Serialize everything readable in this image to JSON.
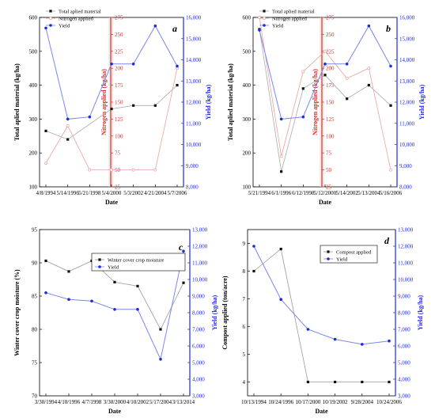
{
  "colors": {
    "black": "#1a1a1a",
    "red": "#c8342c",
    "pink": "#e8a39f",
    "blue": "#1f2bd6",
    "lightblue": "#7b88e8"
  },
  "chart_data": [
    {
      "id": "a",
      "type": "line",
      "panel_label": "a",
      "categories": [
        "4/8/1994",
        "5/14/1996",
        "5/21/1998",
        "5/4/2000",
        "5/3/2002",
        "4/21/2004",
        "5/7/2006"
      ],
      "xlabel": "Date",
      "ylabel_left": "Total aplied material (kg/ha)",
      "ylabel_mid": "Nitrogen applied (kg/ha)",
      "ylabel_right": "Yield (kg/ha)",
      "ylim_left": [
        100,
        600
      ],
      "yticks_left": [
        "100",
        "200",
        "300",
        "400",
        "500",
        "600"
      ],
      "ylim_mid": [
        25,
        275
      ],
      "yticks_mid": [
        "25",
        "50",
        "75",
        "100",
        "125",
        "150",
        "175",
        "200",
        "225",
        "250",
        "275"
      ],
      "ylim_right": [
        8000,
        16000
      ],
      "yticks_right": [
        "8,000",
        "9,000",
        "10,000",
        "11,000",
        "12,000",
        "13,000",
        "14,000",
        "15,000",
        "16,000"
      ],
      "legend": [
        "Total aplied material",
        "Nitrogen applied",
        "Yield"
      ],
      "series": [
        {
          "name": "Total aplied material",
          "axis": "left",
          "values": [
            265,
            240,
            null,
            330,
            340,
            340,
            400
          ]
        },
        {
          "name": "Nitrogen applied",
          "axis": "mid",
          "values": [
            60,
            115,
            50,
            50,
            50,
            50,
            200
          ]
        },
        {
          "name": "Yield",
          "axis": "right",
          "values": [
            15500,
            11200,
            11300,
            13800,
            13800,
            15600,
            13700
          ]
        }
      ]
    },
    {
      "id": "b",
      "type": "line",
      "panel_label": "b",
      "categories": [
        "5/21/1994",
        "6/1/1996",
        "6/12/1998",
        "5/12/2000",
        "5/14/2002",
        "5/13/2004",
        "5/16/2006"
      ],
      "xlabel": "Date",
      "ylabel_left": "Total aplied material (kg/ha)",
      "ylabel_mid": "Nitrogen applied (kg/ha)",
      "ylabel_right": "Yield (kg/ha)",
      "ylim_left": [
        100,
        600
      ],
      "yticks_left": [
        "100",
        "200",
        "300",
        "400",
        "500",
        "600"
      ],
      "ylim_mid": [
        25,
        275
      ],
      "yticks_mid": [
        "25",
        "50",
        "75",
        "100",
        "125",
        "150",
        "175",
        "200",
        "225",
        "250",
        "275"
      ],
      "ylim_right": [
        8000,
        16000
      ],
      "yticks_right": [
        "8,000",
        "9,000",
        "10,000",
        "11,000",
        "12,000",
        "13,000",
        "14,000",
        "15,000",
        "16,000"
      ],
      "legend": [
        "Total aplied material",
        "Nitrogen applied",
        "Yield"
      ],
      "series": [
        {
          "name": "Total aplied material",
          "axis": "left",
          "values": [
            565,
            145,
            390,
            430,
            360,
            400,
            340
          ]
        },
        {
          "name": "Nitrogen applied",
          "axis": "mid",
          "values": [
            275,
            70,
            195,
            225,
            185,
            200,
            50
          ]
        },
        {
          "name": "Yield",
          "axis": "right",
          "values": [
            15400,
            11200,
            11300,
            13800,
            13800,
            15600,
            13700
          ]
        }
      ]
    },
    {
      "id": "c",
      "type": "line",
      "panel_label": "c",
      "categories": [
        "3/30/1994",
        "4/10/1996",
        "4/7/1998",
        "3/30/2000",
        "4/10/2002",
        "5/17/2004",
        "3/13/2014"
      ],
      "xlabel": "Date",
      "ylabel_left": "Winter cover crop moisture (%)",
      "ylabel_right": "Yield (kg/ha)",
      "ylim_left": [
        70,
        95
      ],
      "yticks_left": [
        "70",
        "75",
        "80",
        "85",
        "90",
        "95"
      ],
      "ylim_right": [
        3000,
        13000
      ],
      "yticks_right": [
        "3,000",
        "4,000",
        "5,000",
        "6,000",
        "7,000",
        "8,000",
        "9,000",
        "10,000",
        "11,000",
        "12,000",
        "13,000"
      ],
      "legend": [
        "Winter cover crop moisture",
        "Yield"
      ],
      "series": [
        {
          "name": "Winter cover crop moisture",
          "axis": "left",
          "values": [
            90.3,
            88.7,
            90.3,
            87.1,
            86.5,
            80.0,
            87.0
          ]
        },
        {
          "name": "Yield",
          "axis": "right",
          "values": [
            9200,
            8800,
            8700,
            8200,
            8200,
            5200,
            11700
          ]
        }
      ]
    },
    {
      "id": "d",
      "type": "line",
      "panel_label": "d",
      "categories": [
        "10/13/1994",
        "10/24/1996",
        "10/17/2000",
        "10/19/2002",
        "9/28/2004",
        "10/24/2006"
      ],
      "xlabel": "Date",
      "ylabel_left": "Compost applied (ton/acre)",
      "ylabel_right": "Yield (kg/ha)",
      "ylim_left": [
        3.5,
        9.5
      ],
      "yticks_left": [
        "4",
        "5",
        "6",
        "7",
        "8",
        "9"
      ],
      "ylim_right": [
        3000,
        13000
      ],
      "yticks_right": [
        "3,000",
        "4,000",
        "5,000",
        "6,000",
        "7,000",
        "8,000",
        "9,000",
        "10,000",
        "11,000",
        "12,000",
        "13,000"
      ],
      "legend": [
        "Compost applied",
        "Yield"
      ],
      "series": [
        {
          "name": "Compost applied",
          "axis": "left",
          "values": [
            8.0,
            8.8,
            4.0,
            4.0,
            4.0,
            4.0
          ]
        },
        {
          "name": "Yield",
          "axis": "right",
          "values": [
            12000,
            8800,
            7000,
            6400,
            6100,
            6300
          ]
        }
      ]
    }
  ]
}
